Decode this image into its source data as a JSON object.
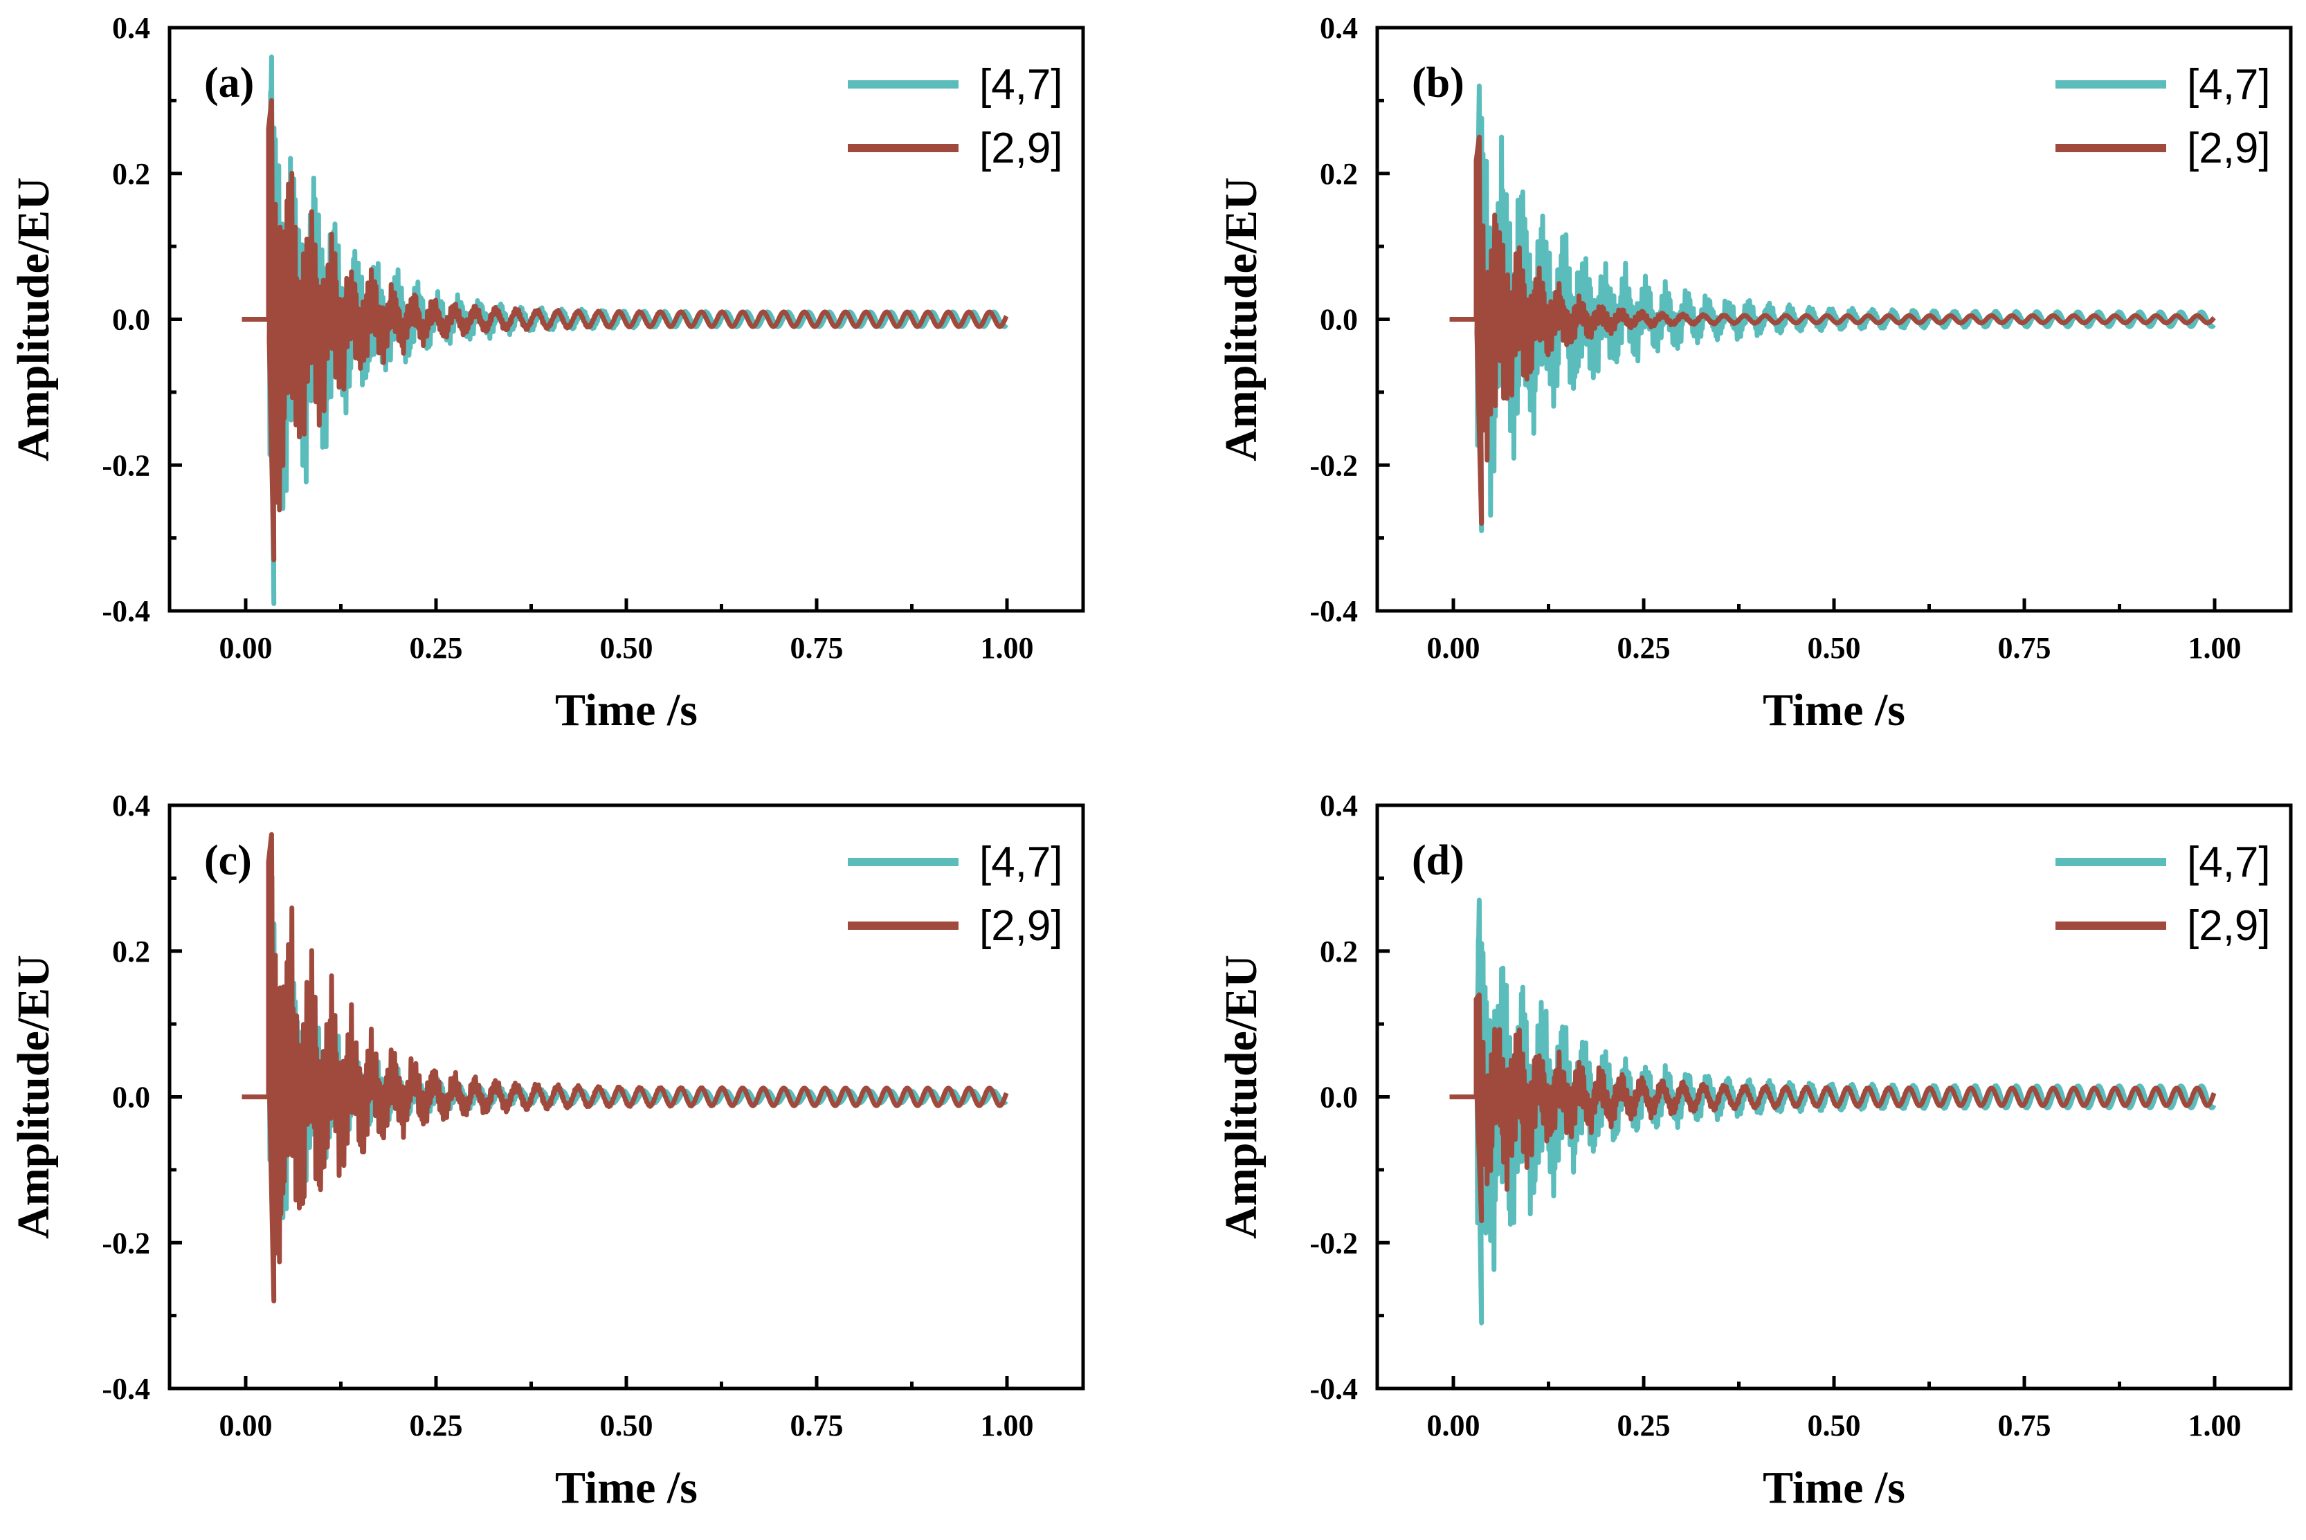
{
  "chart_data": [
    {
      "panel": "(a)",
      "type": "line",
      "xlabel": "Time /s",
      "ylabel": "Amplitude/EU",
      "xlim": [
        -0.1,
        1.1
      ],
      "ylim": [
        -0.4,
        0.4
      ],
      "xticks": [
        "0.00",
        "0.25",
        "0.50",
        "0.75",
        "1.00"
      ],
      "yticks": [
        "-0.4",
        "-0.2",
        "0.0",
        "0.2",
        "0.4"
      ],
      "legend_position": "top-right",
      "series": [
        {
          "name": "[4,7]",
          "color": "#5bbcbc",
          "onset": 0.03,
          "peak_pos": 0.36,
          "peak_neg": -0.39,
          "decay": 0.09,
          "tail": 0.01
        },
        {
          "name": "[2,9]",
          "color": "#a04a3e",
          "onset": 0.03,
          "peak_pos": 0.3,
          "peak_neg": -0.33,
          "decay": 0.08,
          "tail": 0.01
        }
      ]
    },
    {
      "panel": "(b)",
      "type": "line",
      "xlabel": "Time /s",
      "ylabel": "Amplitude/EU",
      "xlim": [
        -0.1,
        1.1
      ],
      "ylim": [
        -0.4,
        0.4
      ],
      "xticks": [
        "0.00",
        "0.25",
        "0.50",
        "0.75",
        "1.00"
      ],
      "yticks": [
        "-0.4",
        "-0.2",
        "0.0",
        "0.2",
        "0.4"
      ],
      "legend_position": "top-right",
      "series": [
        {
          "name": "[4,7]",
          "color": "#5bbcbc",
          "onset": 0.03,
          "peak_pos": 0.32,
          "peak_neg": -0.29,
          "decay": 0.12,
          "tail": 0.01
        },
        {
          "name": "[2,9]",
          "color": "#a04a3e",
          "onset": 0.03,
          "peak_pos": 0.25,
          "peak_neg": -0.28,
          "decay": 0.06,
          "tail": 0.005
        }
      ]
    },
    {
      "panel": "(c)",
      "type": "line",
      "xlabel": "Time /s",
      "ylabel": "Amplitude/EU",
      "xlim": [
        -0.1,
        1.1
      ],
      "ylim": [
        -0.4,
        0.4
      ],
      "xticks": [
        "0.00",
        "0.25",
        "0.50",
        "0.75",
        "1.00"
      ],
      "yticks": [
        "-0.4",
        "-0.2",
        "0.0",
        "0.2",
        "0.4"
      ],
      "legend_position": "top-right",
      "series": [
        {
          "name": "[4,7]",
          "color": "#5bbcbc",
          "onset": 0.03,
          "peak_pos": 0.25,
          "peak_neg": -0.22,
          "decay": 0.08,
          "tail": 0.008
        },
        {
          "name": "[2,9]",
          "color": "#a04a3e",
          "onset": 0.03,
          "peak_pos": 0.36,
          "peak_neg": -0.28,
          "decay": 0.09,
          "tail": 0.012
        }
      ]
    },
    {
      "panel": "(d)",
      "type": "line",
      "xlabel": "Time /s",
      "ylabel": "Amplitude/EU",
      "xlim": [
        -0.1,
        1.1
      ],
      "ylim": [
        -0.4,
        0.4
      ],
      "xticks": [
        "0.00",
        "0.25",
        "0.50",
        "0.75",
        "1.00"
      ],
      "yticks": [
        "-0.4",
        "-0.2",
        "0.0",
        "0.2",
        "0.4"
      ],
      "legend_position": "top-right",
      "series": [
        {
          "name": "[4,7]",
          "color": "#5bbcbc",
          "onset": 0.03,
          "peak_pos": 0.27,
          "peak_neg": -0.31,
          "decay": 0.11,
          "tail": 0.015
        },
        {
          "name": "[2,9]",
          "color": "#a04a3e",
          "onset": 0.03,
          "peak_pos": 0.14,
          "peak_neg": -0.17,
          "decay": 0.1,
          "tail": 0.012
        }
      ]
    }
  ]
}
